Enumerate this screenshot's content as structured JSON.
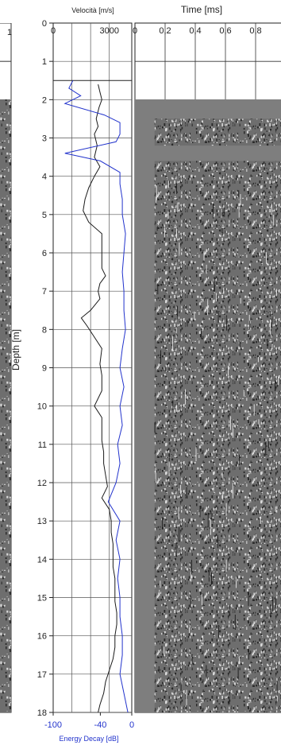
{
  "chart_data": [
    {
      "type": "line",
      "title": "",
      "top_axis_label": "Velocità [m/s]",
      "top_ticks": [
        0,
        3000
      ],
      "bottom_axis_label": "Energy Decay [dB]",
      "bottom_ticks": [
        -100,
        -40,
        0
      ],
      "ylabel": "Depth [m]",
      "depth_ticks": [
        0,
        1,
        2,
        3,
        4,
        5,
        6,
        7,
        8,
        9,
        10,
        11,
        12,
        13,
        14,
        15,
        16,
        17,
        18
      ],
      "ylim": [
        0,
        18
      ],
      "velocity_lim": [
        0,
        4200
      ],
      "decay_lim": [
        -100,
        0
      ],
      "data_start_depth": 1.5,
      "series": [
        {
          "key": "velocity",
          "color": "#1a1a1a",
          "points": [
            [
              1.6,
              2400
            ],
            [
              1.8,
              2500
            ],
            [
              2.0,
              2600
            ],
            [
              2.2,
              2450
            ],
            [
              2.5,
              2300
            ],
            [
              2.7,
              2400
            ],
            [
              2.9,
              2200
            ],
            [
              3.2,
              2350
            ],
            [
              3.5,
              2200
            ],
            [
              3.75,
              2500
            ],
            [
              4.0,
              2200
            ],
            [
              4.3,
              1900
            ],
            [
              4.6,
              1700
            ],
            [
              4.9,
              1600
            ],
            [
              5.2,
              1900
            ],
            [
              5.5,
              2600
            ],
            [
              5.8,
              2600
            ],
            [
              6.1,
              2600
            ],
            [
              6.4,
              2600
            ],
            [
              6.6,
              2800
            ],
            [
              6.8,
              2500
            ],
            [
              7.0,
              2400
            ],
            [
              7.2,
              2500
            ],
            [
              7.5,
              2000
            ],
            [
              7.7,
              1500
            ],
            [
              7.9,
              1800
            ],
            [
              8.2,
              2200
            ],
            [
              8.5,
              2600
            ],
            [
              8.9,
              2500
            ],
            [
              9.2,
              2600
            ],
            [
              9.6,
              2600
            ],
            [
              10.0,
              2200
            ],
            [
              10.3,
              2600
            ],
            [
              10.6,
              2600
            ],
            [
              10.9,
              2600
            ],
            [
              11.2,
              2700
            ],
            [
              11.5,
              2700
            ],
            [
              11.8,
              2800
            ],
            [
              12.1,
              2900
            ],
            [
              12.4,
              2600
            ],
            [
              12.7,
              3000
            ],
            [
              13.0,
              3100
            ],
            [
              13.3,
              3100
            ],
            [
              13.6,
              3200
            ],
            [
              13.9,
              3200
            ],
            [
              14.2,
              3200
            ],
            [
              14.5,
              3300
            ],
            [
              14.8,
              3300
            ],
            [
              15.1,
              3300
            ],
            [
              15.4,
              3400
            ],
            [
              15.7,
              3400
            ],
            [
              16.0,
              3300
            ],
            [
              16.3,
              3300
            ],
            [
              16.6,
              3200
            ],
            [
              16.9,
              3000
            ],
            [
              17.2,
              2800
            ],
            [
              17.5,
              2700
            ],
            [
              17.8,
              2500
            ],
            [
              18.0,
              2400
            ]
          ]
        },
        {
          "key": "energy_decay",
          "color": "#2233cc",
          "points": [
            [
              1.5,
              -75
            ],
            [
              1.7,
              -80
            ],
            [
              1.9,
              -65
            ],
            [
              2.1,
              -85
            ],
            [
              2.4,
              -35
            ],
            [
              2.6,
              -15
            ],
            [
              2.9,
              -15
            ],
            [
              3.1,
              -20
            ],
            [
              3.4,
              -85
            ],
            [
              3.6,
              -40
            ],
            [
              3.9,
              -15
            ],
            [
              4.2,
              -15
            ],
            [
              4.6,
              -12
            ],
            [
              5.0,
              -12
            ],
            [
              5.5,
              -8
            ],
            [
              6.0,
              -10
            ],
            [
              6.5,
              -12
            ],
            [
              7.0,
              -10
            ],
            [
              7.5,
              -10
            ],
            [
              8.0,
              -8
            ],
            [
              8.5,
              -12
            ],
            [
              9.0,
              -15
            ],
            [
              9.5,
              -10
            ],
            [
              10.0,
              -15
            ],
            [
              10.5,
              -12
            ],
            [
              11.0,
              -18
            ],
            [
              11.5,
              -15
            ],
            [
              12.0,
              -20
            ],
            [
              12.5,
              -30
            ],
            [
              13.0,
              -15
            ],
            [
              13.5,
              -20
            ],
            [
              14.0,
              -15
            ],
            [
              14.5,
              -18
            ],
            [
              15.0,
              -15
            ],
            [
              15.5,
              -15
            ],
            [
              16.0,
              -12
            ],
            [
              16.5,
              -12
            ],
            [
              17.0,
              -15
            ],
            [
              17.5,
              -10
            ],
            [
              18.0,
              -5
            ]
          ]
        }
      ]
    },
    {
      "type": "heatmap",
      "title": "",
      "xlabel": "Time [ms]",
      "x_ticks": [
        "0",
        "0,2",
        "0,4",
        "0,6",
        "0,8"
      ],
      "xlim": [
        0,
        1.0
      ],
      "ylim": [
        0,
        18
      ],
      "data_start_depth": 1.5,
      "first_arrival_ms": 0.13
    }
  ],
  "colors": {
    "background": "#ffffff",
    "panel_gray": "#7e7e7e",
    "gridline": "#333333"
  }
}
